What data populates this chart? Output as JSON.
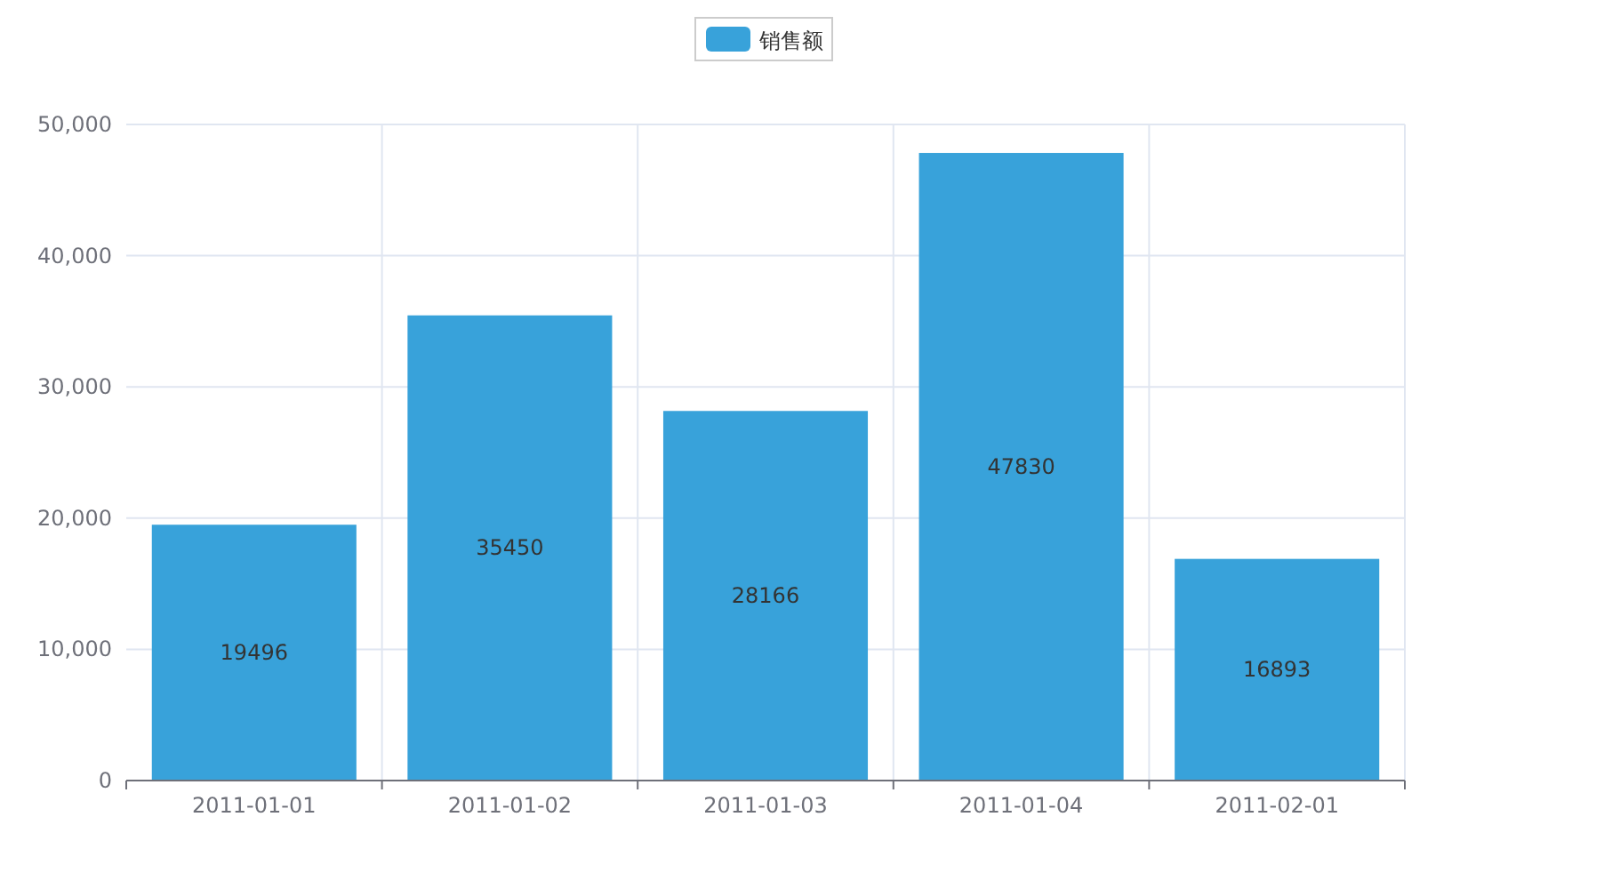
{
  "chart_data": {
    "type": "bar",
    "categories": [
      "2011-01-01",
      "2011-01-02",
      "2011-01-03",
      "2011-01-04",
      "2011-02-01"
    ],
    "series": [
      {
        "name": "销售额",
        "color": "#38a2da",
        "values": [
          19496,
          35450,
          28166,
          47830,
          16893
        ]
      }
    ],
    "ylim": [
      0,
      50000
    ],
    "yticks": [
      0,
      {
        "value": 10000,
        "label": "10,000"
      },
      {
        "value": 20000,
        "label": "20,000"
      },
      {
        "value": 30000,
        "label": "30,000"
      },
      {
        "value": 40000,
        "label": "40,000"
      },
      {
        "value": 50000,
        "label": "50,000"
      }
    ],
    "grid": true,
    "legend": "top",
    "data_labels": true
  }
}
